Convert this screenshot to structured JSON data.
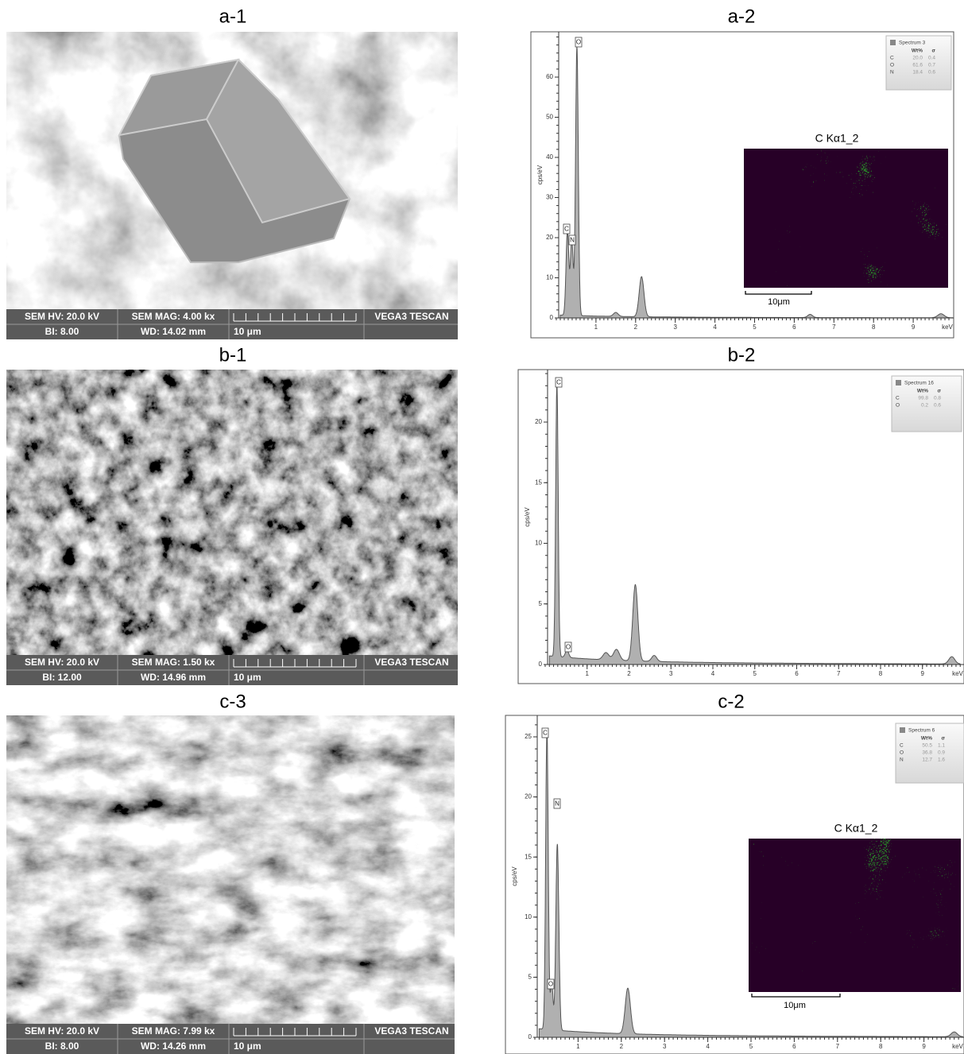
{
  "panels": [
    {
      "label": "a-1",
      "kind": "sem",
      "info": {
        "hv": "SEM HV: 20.0 kV",
        "mag": "SEM MAG: 4.00 kx",
        "vendor": "VEGA3 TESCAN",
        "bi": "BI: 8.00",
        "wd": "WD: 14.02 mm",
        "scale": "10 μm"
      }
    },
    {
      "label": "a-2",
      "kind": "spectrum",
      "spectrum": {
        "y_label": "cps/eV",
        "x_label": "keV",
        "yticks": [
          0,
          10,
          20,
          30,
          40,
          50,
          60
        ],
        "xticks": [
          1,
          2,
          3,
          4,
          5,
          6,
          7,
          8,
          9
        ],
        "peaks": [
          "C",
          "N",
          "O"
        ],
        "legend": {
          "title": "Spectrum 3",
          "headers": [
            "Wt%",
            "σ"
          ],
          "rows": [
            [
              "C",
              "20.0",
              "0.4"
            ],
            [
              "O",
              "61.6",
              "0.7"
            ],
            [
              "N",
              "18.4",
              "0.6"
            ]
          ]
        },
        "inset": {
          "title": "C Kα1_2",
          "scale": "10μm"
        }
      }
    },
    {
      "label": "b-1",
      "kind": "sem",
      "info": {
        "hv": "SEM HV: 20.0 kV",
        "mag": "SEM MAG: 1.50 kx",
        "vendor": "VEGA3 TESCAN",
        "bi": "BI: 12.00",
        "wd": "WD: 14.96 mm",
        "scale": "10 μm"
      }
    },
    {
      "label": "b-2",
      "kind": "spectrum",
      "spectrum": {
        "y_label": "cps/eV",
        "x_label": "keV",
        "yticks": [
          0,
          5,
          10,
          15,
          20
        ],
        "xticks": [
          1,
          2,
          3,
          4,
          5,
          6,
          7,
          8,
          9
        ],
        "peaks": [
          "C",
          "O"
        ],
        "legend": {
          "title": "Spectrum 16",
          "headers": [
            "Wt%",
            "σ"
          ],
          "rows": [
            [
              "C",
              "99.8",
              "0.8"
            ],
            [
              "O",
              "0.2",
              "0.6"
            ]
          ]
        }
      }
    },
    {
      "label": "c-3",
      "kind": "sem",
      "info": {
        "hv": "SEM HV: 20.0 kV",
        "mag": "SEM MAG: 7.99 kx",
        "vendor": "VEGA3 TESCAN",
        "bi": "BI: 8.00",
        "wd": "WD: 14.26 mm",
        "scale": "10 μm"
      }
    },
    {
      "label": "c-2",
      "kind": "spectrum",
      "spectrum": {
        "y_label": "cps/eV",
        "x_label": "keV",
        "yticks": [
          0,
          5,
          10,
          15,
          20,
          25
        ],
        "xticks": [
          1,
          2,
          3,
          4,
          5,
          6,
          7,
          8,
          9
        ],
        "peaks": [
          "C",
          "O",
          "N"
        ],
        "legend": {
          "title": "Spectrum 6",
          "headers": [
            "Wt%",
            "σ"
          ],
          "rows": [
            [
              "C",
              "50.5",
              "1.1"
            ],
            [
              "O",
              "36.8",
              "0.9"
            ],
            [
              "N",
              "12.7",
              "1.6"
            ]
          ]
        },
        "inset": {
          "title": "C Kα1_2",
          "scale": "10μm"
        }
      }
    }
  ]
}
